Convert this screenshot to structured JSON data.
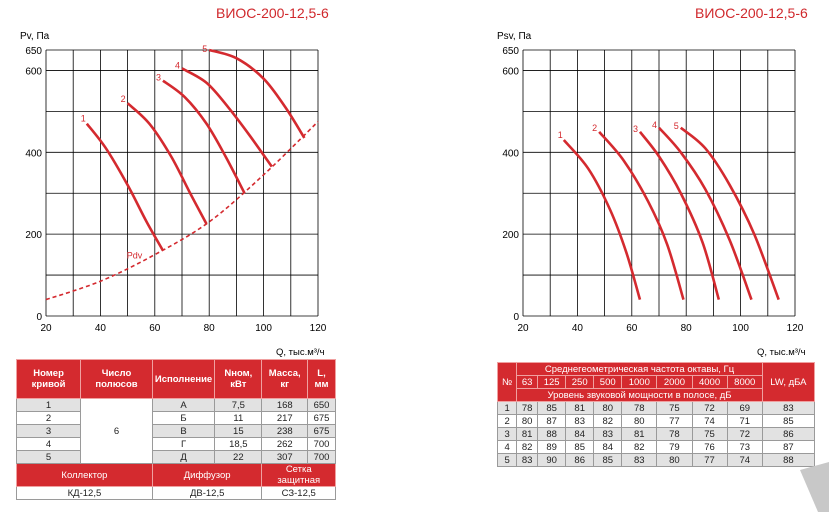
{
  "left": {
    "model": "ВИОС-200-12,5-6",
    "ylabel": "Pv, Па",
    "xlabel": "Q, тыс.м³/ч",
    "pdv_label": "Pdv",
    "table": {
      "headers": [
        "Номер кривой",
        "Число полюсов",
        "Исполнение",
        "Nном, кВт",
        "Масса, кг",
        "L, мм"
      ],
      "poles": "6",
      "rows": [
        [
          "1",
          "А",
          "7,5",
          "168",
          "650"
        ],
        [
          "2",
          "Б",
          "11",
          "217",
          "675"
        ],
        [
          "3",
          "В",
          "15",
          "238",
          "675"
        ],
        [
          "4",
          "Г",
          "18,5",
          "262",
          "700"
        ],
        [
          "5",
          "Д",
          "22",
          "307",
          "700"
        ]
      ],
      "acc_headers": [
        "Коллектор",
        "Диффузор",
        "Сетка защитная"
      ],
      "acc_values": [
        "КД-12,5",
        "ДВ-12,5",
        "СЗ-12,5"
      ]
    }
  },
  "right": {
    "model": "ВИОС-200-12,5-6",
    "ylabel": "Psv, Па",
    "xlabel": "Q, тыс.м³/ч",
    "table": {
      "h_no": "№",
      "h_freq": "Среднегеометрическая частота октавы, Гц",
      "freqs": [
        "63",
        "125",
        "250",
        "500",
        "1000",
        "2000",
        "4000",
        "8000"
      ],
      "h_level": "Уровень звуковой мощности в полосе, дБ",
      "h_lw": "LW, дБА",
      "rows": [
        [
          "1",
          "78",
          "85",
          "81",
          "80",
          "78",
          "75",
          "72",
          "69",
          "83"
        ],
        [
          "2",
          "80",
          "87",
          "83",
          "82",
          "80",
          "77",
          "74",
          "71",
          "85"
        ],
        [
          "3",
          "81",
          "88",
          "84",
          "83",
          "81",
          "78",
          "75",
          "72",
          "86"
        ],
        [
          "4",
          "82",
          "89",
          "85",
          "84",
          "82",
          "79",
          "76",
          "73",
          "87"
        ],
        [
          "5",
          "83",
          "90",
          "86",
          "85",
          "83",
          "80",
          "77",
          "74",
          "88"
        ]
      ]
    }
  },
  "chart_data": [
    {
      "type": "line",
      "ylabel": "Pv, Па",
      "xlabel": "Q, тыс.м³/ч",
      "xlim": [
        20,
        120
      ],
      "ylim": [
        0,
        650
      ],
      "xticks": [
        20,
        40,
        60,
        80,
        100,
        120
      ],
      "yticks": [
        0,
        200,
        400,
        600,
        650
      ],
      "grid": true,
      "series": [
        {
          "name": "1",
          "points": [
            [
              35,
              470
            ],
            [
              42,
              410
            ],
            [
              50,
              320
            ],
            [
              57,
              230
            ],
            [
              63,
              160
            ]
          ]
        },
        {
          "name": "2",
          "points": [
            [
              50,
              520
            ],
            [
              58,
              470
            ],
            [
              66,
              390
            ],
            [
              73,
              300
            ],
            [
              79,
              225
            ]
          ]
        },
        {
          "name": "3",
          "points": [
            [
              63,
              575
            ],
            [
              71,
              535
            ],
            [
              79,
              470
            ],
            [
              86,
              390
            ],
            [
              93,
              300
            ]
          ]
        },
        {
          "name": "4",
          "points": [
            [
              70,
              605
            ],
            [
              79,
              570
            ],
            [
              87,
              510
            ],
            [
              95,
              440
            ],
            [
              103,
              365
            ]
          ]
        },
        {
          "name": "5",
          "points": [
            [
              80,
              650
            ],
            [
              90,
              630
            ],
            [
              100,
              580
            ],
            [
              108,
              510
            ],
            [
              115,
              435
            ]
          ]
        },
        {
          "name": "Pdv",
          "dashed": true,
          "points": [
            [
              20,
              40
            ],
            [
              40,
              85
            ],
            [
              60,
              150
            ],
            [
              80,
              230
            ],
            [
              100,
              345
            ],
            [
              120,
              475
            ]
          ]
        }
      ]
    },
    {
      "type": "line",
      "ylabel": "Psv, Па",
      "xlabel": "Q, тыс.м³/ч",
      "xlim": [
        20,
        120
      ],
      "ylim": [
        0,
        650
      ],
      "xticks": [
        20,
        40,
        60,
        80,
        100,
        120
      ],
      "yticks": [
        0,
        200,
        400,
        600,
        650
      ],
      "grid": true,
      "series": [
        {
          "name": "1",
          "points": [
            [
              35,
              430
            ],
            [
              44,
              360
            ],
            [
              52,
              260
            ],
            [
              58,
              155
            ],
            [
              63,
              40
            ]
          ]
        },
        {
          "name": "2",
          "points": [
            [
              48,
              450
            ],
            [
              57,
              380
            ],
            [
              66,
              280
            ],
            [
              73,
              175
            ],
            [
              79,
              40
            ]
          ]
        },
        {
          "name": "3",
          "points": [
            [
              63,
              450
            ],
            [
              70,
              390
            ],
            [
              78,
              300
            ],
            [
              86,
              180
            ],
            [
              92,
              40
            ]
          ]
        },
        {
          "name": "4",
          "points": [
            [
              70,
              460
            ],
            [
              78,
              400
            ],
            [
              87,
              310
            ],
            [
              96,
              185
            ],
            [
              104,
              40
            ]
          ]
        },
        {
          "name": "5",
          "points": [
            [
              78,
              460
            ],
            [
              87,
              410
            ],
            [
              96,
              320
            ],
            [
              105,
              200
            ],
            [
              114,
              40
            ]
          ]
        }
      ]
    }
  ]
}
